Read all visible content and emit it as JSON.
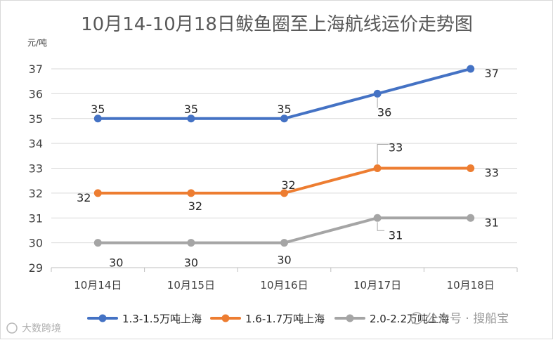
{
  "chart_data": {
    "type": "line",
    "title": "10月14-10月18日鲅鱼圈至上海航线运价走势图",
    "ylabel": "元/吨",
    "xlabel": "",
    "categories": [
      "10月14日",
      "10月15日",
      "10月16日",
      "10月17日",
      "10月18日"
    ],
    "ylim": [
      29,
      37
    ],
    "yticks": [
      29,
      30,
      31,
      32,
      33,
      34,
      35,
      36,
      37
    ],
    "grid": true,
    "legend_position": "bottom",
    "series": [
      {
        "name": "1.3-1.5万吨上海",
        "color": "#4472C4",
        "values": [
          35,
          35,
          35,
          36,
          37
        ]
      },
      {
        "name": "1.6-1.7万吨上海",
        "color": "#ED7D31",
        "values": [
          32,
          32,
          32,
          33,
          33
        ]
      },
      {
        "name": "2.0-2.2万吨上海",
        "color": "#A5A5A5",
        "values": [
          30,
          30,
          30,
          31,
          31
        ]
      }
    ]
  },
  "watermark": {
    "left": "大数跨境",
    "right": "公众号 · 搜船宝"
  }
}
